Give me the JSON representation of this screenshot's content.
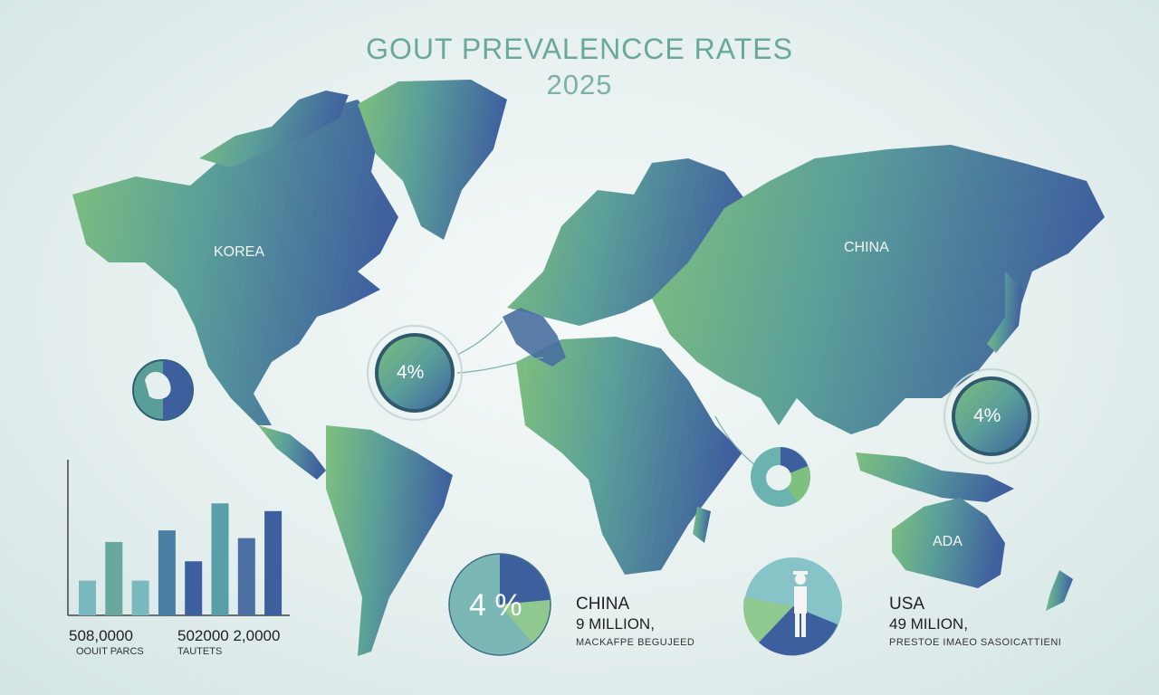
{
  "title": {
    "line1": "GOUT PREVALENCCE RATES",
    "line2": "2025"
  },
  "map_labels": {
    "korea": "KOREA",
    "china": "CHINA",
    "australia": "ADA"
  },
  "rings": {
    "atlantic": "4%",
    "pacific": "4%"
  },
  "pie_left": {
    "pct": "4 %",
    "slices": [
      0.25,
      0.2,
      0.55
    ]
  },
  "stats": {
    "china": {
      "country": "CHINA",
      "value": "9 MILLION,",
      "caption": "MACKAFPE BEGUJEED"
    },
    "usa": {
      "country": "USA",
      "value": "49 MILION,",
      "caption": "PRESTOE IMAEO SASOICATTIENI"
    }
  },
  "chart_data": {
    "type": "bar",
    "values": [
      18,
      38,
      18,
      44,
      28,
      58,
      40,
      54
    ],
    "ylim": [
      0,
      75
    ],
    "labels": {
      "left_number": "508,0000",
      "left_caption": "OOUIT PARCS",
      "right_number": "502000 2,0000",
      "right_caption": "TAUTETS"
    }
  },
  "colors": {
    "green": "#7ec07d",
    "teal": "#5a9e9a",
    "blue": "#3d5f9e",
    "title": "#6aa89e"
  }
}
